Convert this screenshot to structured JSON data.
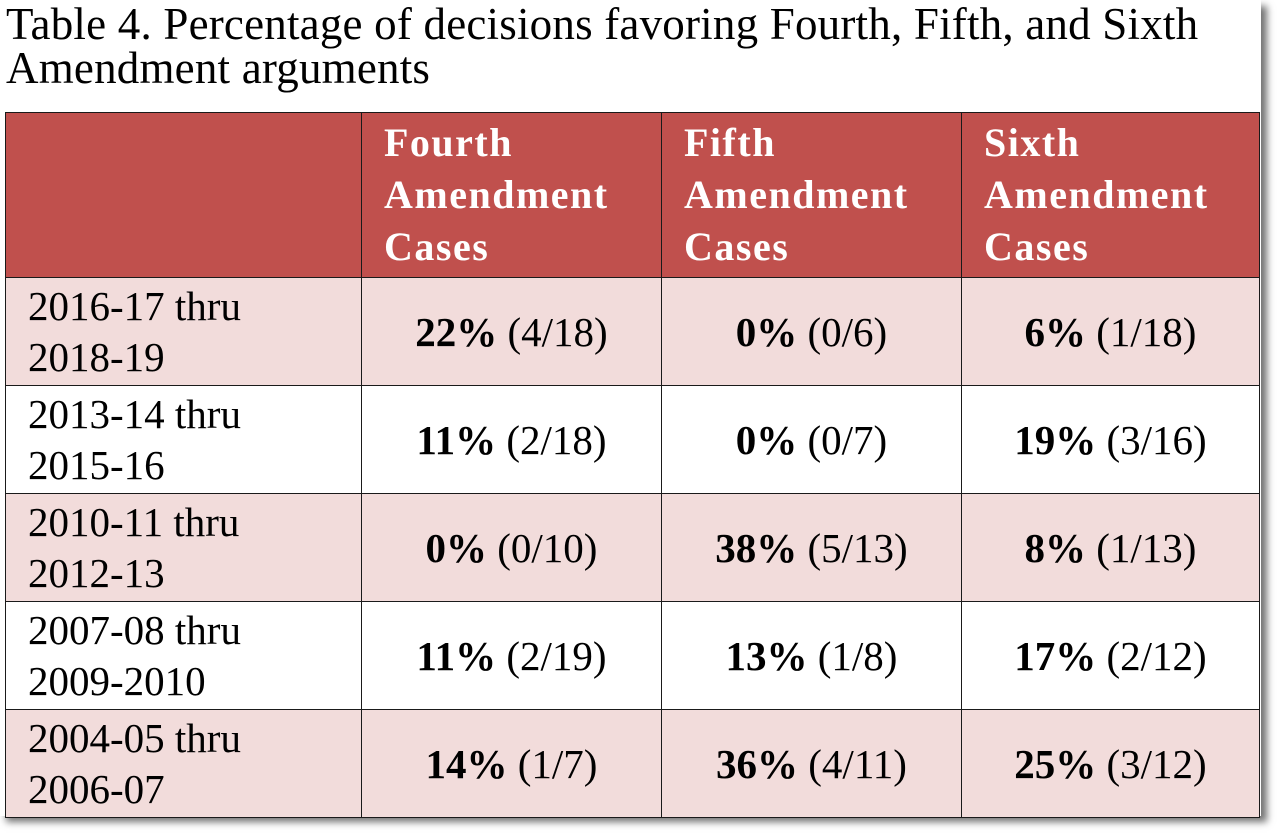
{
  "title": "Table 4.  Percentage of decisions favoring Fourth, Fifth, and Sixth Amendment arguments",
  "columns": [
    {
      "line1": "Fourth",
      "line2": "Amendment",
      "line3": "Cases"
    },
    {
      "line1": "Fifth",
      "line2": "Amendment",
      "line3": "Cases"
    },
    {
      "line1": "Sixth",
      "line2": "Amendment",
      "line3": "Cases"
    }
  ],
  "rows": [
    {
      "period_start": "2016-17 thru",
      "period_end": "2018-19",
      "cells": [
        {
          "pct": "22%",
          "ratio": "(4/18)"
        },
        {
          "pct": "0%",
          "ratio": "(0/6)"
        },
        {
          "pct": "6%",
          "ratio": "(1/18)"
        }
      ]
    },
    {
      "period_start": "2013-14 thru",
      "period_end": "2015-16",
      "cells": [
        {
          "pct": "11%",
          "ratio": "(2/18)"
        },
        {
          "pct": "0%",
          "ratio": "(0/7)"
        },
        {
          "pct": "19%",
          "ratio": "(3/16)"
        }
      ]
    },
    {
      "period_start": "2010-11 thru",
      "period_end": "2012-13",
      "cells": [
        {
          "pct": "0%",
          "ratio": "(0/10)"
        },
        {
          "pct": "38%",
          "ratio": "(5/13)"
        },
        {
          "pct": "8%",
          "ratio": "(1/13)"
        }
      ]
    },
    {
      "period_start": "2007-08 thru",
      "period_end": "2009-2010",
      "cells": [
        {
          "pct": "11%",
          "ratio": "(2/19)"
        },
        {
          "pct": "13%",
          "ratio": "(1/8)"
        },
        {
          "pct": "17%",
          "ratio": "(2/12)"
        }
      ]
    },
    {
      "period_start": "2004-05 thru",
      "period_end": "2006-07",
      "cells": [
        {
          "pct": "14%",
          "ratio": "(1/7)"
        },
        {
          "pct": "36%",
          "ratio": "(4/11)"
        },
        {
          "pct": "25%",
          "ratio": "(3/12)"
        }
      ]
    }
  ],
  "colors": {
    "header_bg": "#c0504d",
    "header_text": "#ffffff",
    "band_shaded": "#f2dcdb",
    "band_plain": "#ffffff"
  }
}
